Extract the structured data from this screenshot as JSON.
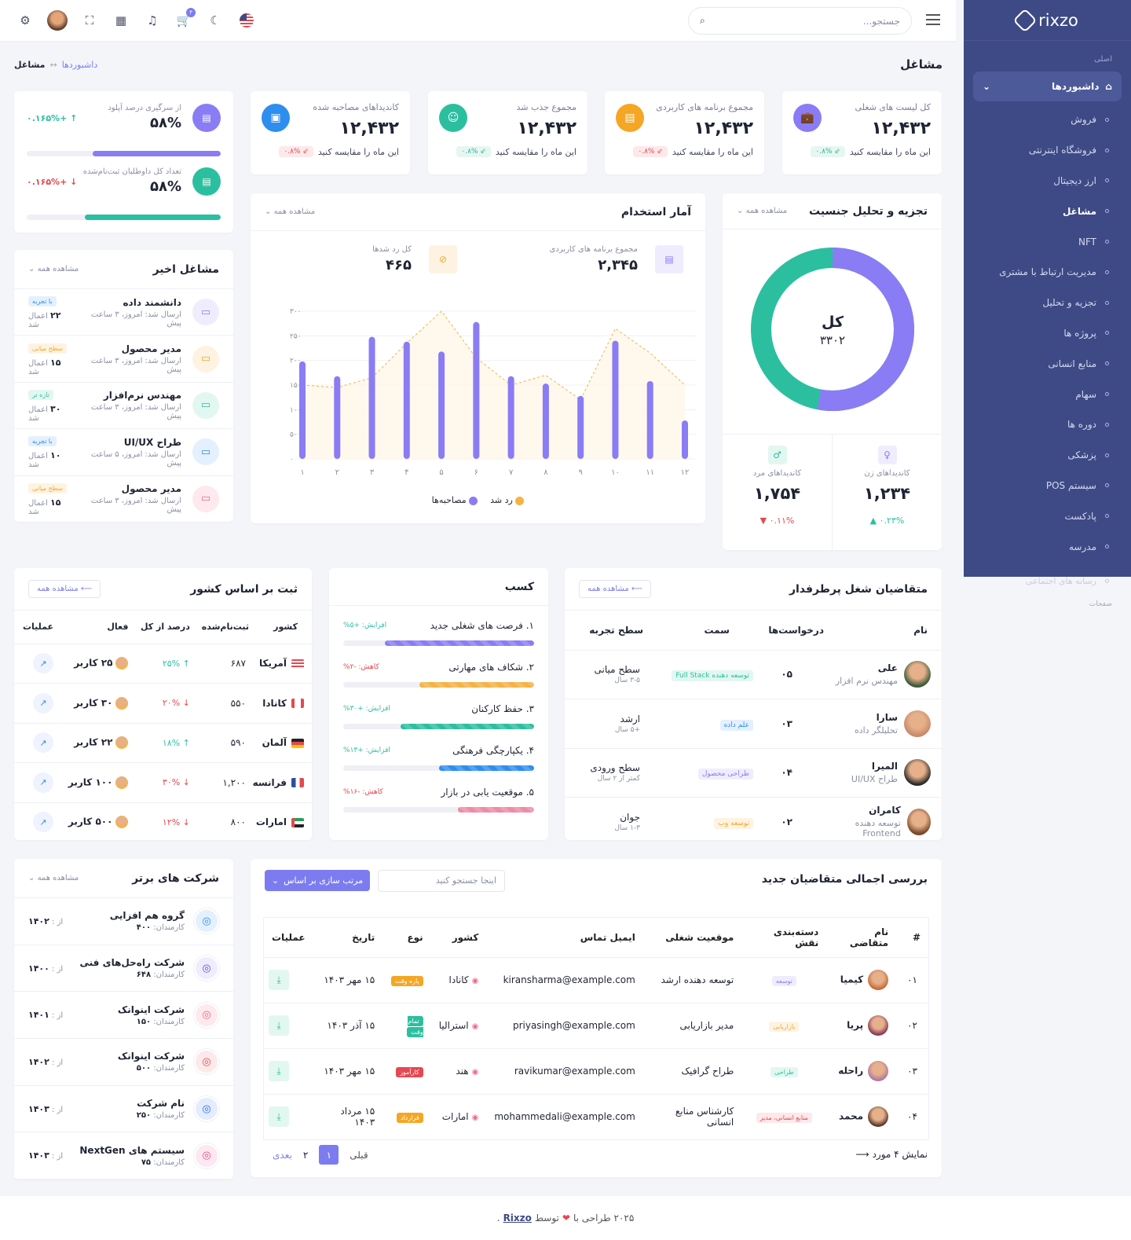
{
  "sidebar": {
    "logo": "rixzo",
    "category": "اصلی",
    "active": "داشبوردها",
    "items": [
      {
        "label": "فروش",
        "cur": false
      },
      {
        "label": "فروشگاه اینترنتی",
        "cur": false
      },
      {
        "label": "ارز دیجیتال",
        "cur": false
      },
      {
        "label": "مشاغل",
        "cur": true
      },
      {
        "label": "NFT",
        "cur": false
      },
      {
        "label": "مدیریت ارتباط با مشتری",
        "cur": false
      },
      {
        "label": "تجزیه و تحلیل",
        "cur": false
      },
      {
        "label": "پروژه ها",
        "cur": false
      },
      {
        "label": "منابع انسانی",
        "cur": false
      },
      {
        "label": "سهام",
        "cur": false
      },
      {
        "label": "دوره ها",
        "cur": false
      },
      {
        "label": "پزشکی",
        "cur": false
      },
      {
        "label": "سیستم POS",
        "cur": false
      },
      {
        "label": "پادکست",
        "cur": false
      },
      {
        "label": "مدرسه",
        "cur": false
      }
    ],
    "extra_item": "رسانه های اجتماعی",
    "extra_cat": "صفحات"
  },
  "header": {
    "search_placeholder": "جستجو...",
    "cart_badge": "۳"
  },
  "page": {
    "title": "مشاغل",
    "breadcrumb_1": "داشبوردها",
    "breadcrumb_sep": "↔",
    "breadcrumb_2": "مشاغل"
  },
  "stats": [
    {
      "label": "کل لیست های شغلی",
      "value": "۱۲,۴۳۲",
      "compare": "این ماه را مقایسه کنید",
      "delta": "۰.۸%",
      "trend": "up",
      "color": "#8a7cf5",
      "icon": "briefcase-icon"
    },
    {
      "label": "مجموع برنامه های کاربردی",
      "value": "۱۲,۴۳۲",
      "compare": "این ماه را مقایسه کنید",
      "delta": "۰.۸%",
      "trend": "down",
      "color": "#f5a623",
      "icon": "document-icon"
    },
    {
      "label": "مجموع جذب شد",
      "value": "۱۲,۴۳۲",
      "compare": "این ماه را مقایسه کنید",
      "delta": "۰.۸%",
      "trend": "up",
      "color": "#2bbfa0",
      "icon": "user-check-icon"
    },
    {
      "label": "کاندیداهای مصاحبه شده",
      "value": "۱۲,۴۳۲",
      "compare": "این ماه را مقایسه کنید",
      "delta": "۰.۸%",
      "trend": "down",
      "color": "#2d8ef0",
      "icon": "calendar-icon"
    }
  ],
  "upload": [
    {
      "label": "از سرگیری درصد آپلود",
      "value": "۵۸%",
      "delta": "+۰.۱۶۵%",
      "trend": "up",
      "color": "#8a7cf5",
      "fill": 0.66
    },
    {
      "label": "تعداد کل داوطلبان ثبت‌نام‌شده",
      "value": "۵۸%",
      "delta": "+۰.۱۶۵%",
      "trend": "down",
      "color": "#2bbfa0",
      "fill": 0.7
    }
  ],
  "gender": {
    "title": "تجزیه و تحلیل جنسیت",
    "see_all": "مشاهده همه",
    "center_label": "کل",
    "center_value": "۳۳۰۲",
    "female": {
      "label": "کاندیداهای زن",
      "value": "۱,۲۳۴",
      "delta": "۰.۲۳%"
    },
    "male": {
      "label": "کاندیداهای مرد",
      "value": "۱,۷۵۴",
      "delta": "۰.۱۱%"
    },
    "share_female": 0.53,
    "share_male": 0.47
  },
  "hire": {
    "title": "آمار استخدام",
    "see_all": "مشاهده همه",
    "total_apps_label": "مجموع برنامه های کاربردی",
    "total_apps": "۲,۳۴۵",
    "rejected_label": "کل رد شدها",
    "rejected": "۴۶۵",
    "legend_interviews": "مصاحبه‌ها",
    "legend_rejected": "رد شد"
  },
  "chart_data": {
    "type": "bar",
    "categories": [
      "۱",
      "۲",
      "۳",
      "۴",
      "۵",
      "۶",
      "۷",
      "۸",
      "۹",
      "۱۰",
      "۱۱",
      "۱۲"
    ],
    "yticks": [
      "۰",
      "۵۰",
      "۱۰۰",
      "۱۵۰",
      "۲۰۰",
      "۲۵۰",
      "۳۰۰"
    ],
    "ylim": [
      0,
      300
    ],
    "series": [
      {
        "name": "مصاحبه‌ها",
        "type": "bar",
        "values": [
          198,
          168,
          248,
          238,
          218,
          278,
          168,
          153,
          128,
          240,
          158,
          78
        ]
      },
      {
        "name": "رد شد",
        "type": "area",
        "values": [
          150,
          145,
          165,
          235,
          300,
          205,
          150,
          170,
          120,
          265,
          215,
          150
        ]
      }
    ]
  },
  "recent_jobs": {
    "title": "مشاغل اخیر",
    "see_all": "مشاهده همه",
    "sent_label": "ارسال شد",
    "applied_label": "اعمال شد",
    "rows": [
      {
        "title": "دانشمند داده",
        "time": "امروز، ۳ ساعت پیش",
        "count": "۲۲",
        "tag": "با تجربه",
        "tagc": "#2d8ef0",
        "tagbg": "#e4f0fe",
        "ic": "#8a7cf5",
        "icbg": "#efedfd"
      },
      {
        "title": "مدیر محصول",
        "time": "امروز، ۳ ساعت پیش",
        "count": "۱۵",
        "tag": "سطح میانی",
        "tagc": "#f5a623",
        "tagbg": "#fef3e2",
        "ic": "#f5a623",
        "icbg": "#fef3e2"
      },
      {
        "title": "مهندس نرم‌افزار",
        "time": "امروز، ۳ ساعت پیش",
        "count": "۳۰",
        "tag": "تازه تر",
        "tagc": "#2bbfa0",
        "tagbg": "#e3f7f1",
        "ic": "#2bbfa0",
        "icbg": "#e3f7f1"
      },
      {
        "title": "طراح UI/UX",
        "time": "امروز، ۵ ساعت پیش",
        "count": "۱۰",
        "tag": "با تجربه",
        "tagc": "#2d8ef0",
        "tagbg": "#e4f0fe",
        "ic": "#2d8ef0",
        "icbg": "#e4f0fe"
      },
      {
        "title": "مدیر محصول",
        "time": "امروز، ۳ ساعت پیش",
        "count": "۱۵",
        "tag": "سطح میانی",
        "tagc": "#f5a623",
        "tagbg": "#fef3e2",
        "ic": "#e96b8a",
        "icbg": "#fde9ee"
      }
    ]
  },
  "candidates": {
    "title": "متقاضیان شغل پرطرفدار",
    "see_all": "مشاهده همه",
    "headers": [
      "نام",
      "درخواست‌ها",
      "سمت",
      "سطح تجربه"
    ],
    "rows": [
      {
        "name": "علی",
        "role": "مهندس نرم افزار",
        "apps": "۰۵",
        "pos": "توسعه دهنده Full Stack",
        "posc": "#2bbfa0",
        "posbg": "#e3f7f1",
        "lvl": "سطح میانی",
        "yrs": "۳-۵ سال",
        "av": "#3b5a3a"
      },
      {
        "name": "سارا",
        "role": "تحلیلگر داده",
        "apps": "۰۳",
        "pos": "علم داده",
        "posc": "#2d8ef0",
        "posbg": "#e4f0fe",
        "lvl": "ارشد",
        "yrs": "+۵ سال",
        "av": "#c88a6a"
      },
      {
        "name": "المیرا",
        "role": "طراح UI/UX",
        "apps": "۰۴",
        "pos": "طراحی محصول",
        "posc": "#8a7cf5",
        "posbg": "#efedfd",
        "lvl": "سطح ورودی",
        "yrs": "کمتر از ۲ سال",
        "av": "#2a2a2a"
      },
      {
        "name": "کامران",
        "role": "توسعه دهنده Frontend",
        "apps": "۰۲",
        "pos": "توسعه وب",
        "posc": "#f5a623",
        "posbg": "#fef3e2",
        "lvl": "جوان",
        "yrs": "۱-۳ سال",
        "av": "#7a4a2a"
      }
    ]
  },
  "skills": {
    "title": "کسب",
    "rows": [
      {
        "label": "۱. فرصت های شغلی جدید",
        "delta": "افزایش: +۵%",
        "trend": "up",
        "color": "#8a7cf5",
        "fill": 0.78
      },
      {
        "label": "۲. شکاف های مهارتی",
        "delta": "کاهش: -۲%",
        "trend": "down",
        "color": "#f5b342",
        "fill": 0.6
      },
      {
        "label": "۳. حفظ کارکنان",
        "delta": "افزایش: +۳۰%",
        "trend": "up",
        "color": "#2bbfa0",
        "fill": 0.7
      },
      {
        "label": "۴. یکپارچگی فرهنگی",
        "delta": "افزایش: +۱۳%",
        "trend": "up",
        "color": "#2d8ef0",
        "fill": 0.5
      },
      {
        "label": "۵. موقعیت یابی در بازار",
        "delta": "کاهش: -۱۶%",
        "trend": "down",
        "color": "#f08aa5",
        "fill": 0.4
      }
    ]
  },
  "countries": {
    "title": "ثبت بر اساس کشور",
    "see_all": "مشاهده همه",
    "headers": [
      "کشور",
      "ثبت‌نام‌شده",
      "درصد از کل",
      "فعال",
      "عملیات"
    ],
    "users_label": "کاربر",
    "rows": [
      {
        "name": "آمریکا",
        "reg": "۶۸۷",
        "pct": "۲۵%",
        "trend": "up",
        "active": "۲۵",
        "flag": "us"
      },
      {
        "name": "کانادا",
        "reg": "۵۵۰",
        "pct": "۲۰%",
        "trend": "down",
        "active": "۳۰",
        "flag": "ca"
      },
      {
        "name": "آلمان",
        "reg": "۵۹۰",
        "pct": "۱۸%",
        "trend": "up",
        "active": "۲۲",
        "flag": "de"
      },
      {
        "name": "فرانسه",
        "reg": "۱,۲۰۰",
        "pct": "۳۰%",
        "trend": "down",
        "active": "۱۰۰",
        "flag": "fr"
      },
      {
        "name": "امارات",
        "reg": "۸۰۰",
        "pct": "۱۲%",
        "trend": "down",
        "active": "۵۰۰",
        "flag": "ae"
      }
    ]
  },
  "companies": {
    "title": "شرکت های برتر",
    "see_all": "مشاهده همه",
    "emp_label": "کارمندان:",
    "since_label": "از :",
    "rows": [
      {
        "name": "گروه هم افزایی",
        "emp": "۴۰۰",
        "since": "۱۴۰۲",
        "c": "#2d8ef0",
        "bg": "#e4f0fe"
      },
      {
        "name": "شرکت راه‌حل‌های فنی",
        "emp": "۶۴۸",
        "since": "۱۴۰۰",
        "c": "#5b4fd6",
        "bg": "#efedfd"
      },
      {
        "name": "شرکت اینوانک",
        "emp": "۱۵۰",
        "since": "۱۴۰۱",
        "c": "#e96b8a",
        "bg": "#fde9ee"
      },
      {
        "name": "شرکت اینوانک",
        "emp": "۵۰۰",
        "since": "۱۴۰۲",
        "c": "#e54850",
        "bg": "#fde8ea"
      },
      {
        "name": "نام شرکت",
        "emp": "۲۵۰",
        "since": "۱۴۰۳",
        "c": "#2d6ef0",
        "bg": "#e4ecfe"
      },
      {
        "name": "سیستم های NextGen",
        "emp": "۷۵",
        "since": "۱۴۰۳",
        "c": "#e54890",
        "bg": "#fde8f1"
      }
    ]
  },
  "applicants": {
    "title": "بررسی اجمالی متقاضیان جدید",
    "search_placeholder": "اینجا جستجو کنید",
    "sort_label": "مرتب سازی بر اساس",
    "headers": [
      "#",
      "نام متقاضی",
      "دسته‌بندی نقش",
      "موقعیت شغلی",
      "ایمیل تماس",
      "کشور",
      "نوع",
      "تاریخ",
      "عملیات"
    ],
    "rows": [
      {
        "n": "۰۱",
        "name": "کیمیا",
        "cat": "توسعه",
        "catc": "#8a7cf5",
        "catbg": "#efedfd",
        "pos": "توسعه دهنده ارشد",
        "email": "kiransharma@example.com",
        "country": "کانادا",
        "type": "پاره وقت",
        "typebg": "#f5a623",
        "date": "۱۵ مهر ۱۴۰۳",
        "av": "#c86a3a"
      },
      {
        "n": "۰۲",
        "name": "پریا",
        "cat": "بازاریابی",
        "catc": "#f5a623",
        "catbg": "#fef3e2",
        "pos": "مدیر بازاریابی",
        "email": "priyasingh@example.com",
        "country": "استرالیا",
        "type": "تمام وقت",
        "typebg": "#2bbfa0",
        "date": "۱۵ آذر ۱۴۰۳",
        "av": "#8a3a5a"
      },
      {
        "n": "۰۳",
        "name": "راحله",
        "cat": "طراحی",
        "catc": "#2bbfa0",
        "catbg": "#e3f7f1",
        "pos": "طراح گرافیک",
        "email": "ravikumar@example.com",
        "country": "هند",
        "type": "کارآموز",
        "typebg": "#e54850",
        "date": "۱۵ مهر ۱۴۰۳",
        "av": "#b07aa0"
      },
      {
        "n": "۰۴",
        "name": "محمد",
        "cat": "منابع انسانی، مدیر",
        "catc": "#e54850",
        "catbg": "#fde8ea",
        "pos": "کارشناس منابع انسانی",
        "email": "mohammedali@example.com",
        "country": "امارات",
        "type": "قرارداد",
        "typebg": "#f5a623",
        "date": "۱۵ مرداد ۱۴۰۳",
        "av": "#5a3a2a"
      }
    ],
    "showing": "نمایش ۴ مورد",
    "prev": "قبلی",
    "next": "بعدی",
    "pages": [
      "۱",
      "۲"
    ]
  },
  "footer": {
    "pre": "۲۰۲۵ طراحی با",
    "by": "توسط",
    "brand": "Rixzo",
    "dot": "."
  }
}
